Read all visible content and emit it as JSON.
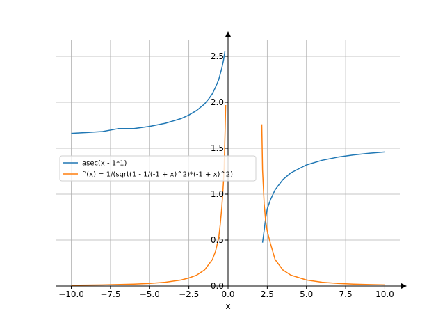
{
  "chart_data": {
    "type": "line",
    "xlabel": "x",
    "ylabel": "",
    "xlim": [
      -11.0,
      11.0
    ],
    "ylim": [
      0.0,
      2.75
    ],
    "xticks": [
      -10,
      -7.5,
      -5,
      -2.5,
      0,
      2.5,
      5,
      7.5,
      10
    ],
    "yticks": [
      0,
      0.5,
      1,
      1.5,
      2,
      2.5
    ],
    "xtick_labels": [
      "−10.0",
      "−7.5",
      "−5.0",
      "−2.5",
      "0.0",
      "2.5",
      "5.0",
      "7.5",
      "10.0"
    ],
    "ytick_labels": [
      "0.0",
      "0.5",
      "1.0",
      "1.5",
      "2.0",
      "2.5"
    ],
    "grid": true,
    "legend_position": "center-left",
    "series": [
      {
        "name": "asec(x - 1*1)",
        "color": "#1f77b4",
        "segments": [
          {
            "x": [
              -10,
              -9,
              -8,
              -7,
              -6,
              -5,
              -4,
              -3,
              -2.5,
              -2,
              -1.5,
              -1.2,
              -1,
              -0.8,
              -0.6,
              -0.4,
              -0.3,
              -0.2
            ],
            "y": [
              1.662,
              1.671,
              1.682,
              1.714,
              1.714,
              1.738,
              1.772,
              1.823,
              1.861,
              1.911,
              1.982,
              2.044,
              2.094,
              2.165,
              2.245,
              2.372,
              2.448,
              2.556
            ]
          },
          {
            "x": [
              2.2,
              2.3,
              2.4,
              2.5,
              2.7,
              3,
              3.5,
              4,
              5,
              6,
              7,
              8,
              9,
              10
            ],
            "y": [
              0.472,
              0.605,
              0.741,
              0.841,
              0.938,
              1.047,
              1.159,
              1.231,
              1.318,
              1.369,
              1.403,
              1.427,
              1.445,
              1.459
            ]
          }
        ]
      },
      {
        "name": "f'(x) = 1/(sqrt(1 - 1/(-1 + x)^2)*(-1 + x)^2)",
        "color": "#ff7f0e",
        "segments": [
          {
            "x": [
              -10,
              -8,
              -6,
              -5,
              -4,
              -3,
              -2.5,
              -2,
              -1.5,
              -1,
              -0.8,
              -0.6,
              -0.5,
              -0.4,
              -0.3,
              -0.25,
              -0.2,
              -0.15
            ],
            "y": [
              0.008,
              0.012,
              0.021,
              0.028,
              0.041,
              0.065,
              0.087,
              0.118,
              0.175,
              0.289,
              0.378,
              0.521,
              0.667,
              0.857,
              1.107,
              1.293,
              1.62,
              1.97
            ]
          },
          {
            "x": [
              2.15,
              2.2,
              2.3,
              2.4,
              2.5,
              2.7,
              3,
              3.5,
              4,
              5,
              6,
              7,
              8,
              9,
              10
            ],
            "y": [
              1.76,
              1.264,
              0.896,
              0.705,
              0.596,
              0.464,
              0.289,
              0.174,
              0.118,
              0.065,
              0.041,
              0.028,
              0.021,
              0.016,
              0.012
            ]
          }
        ]
      }
    ]
  }
}
